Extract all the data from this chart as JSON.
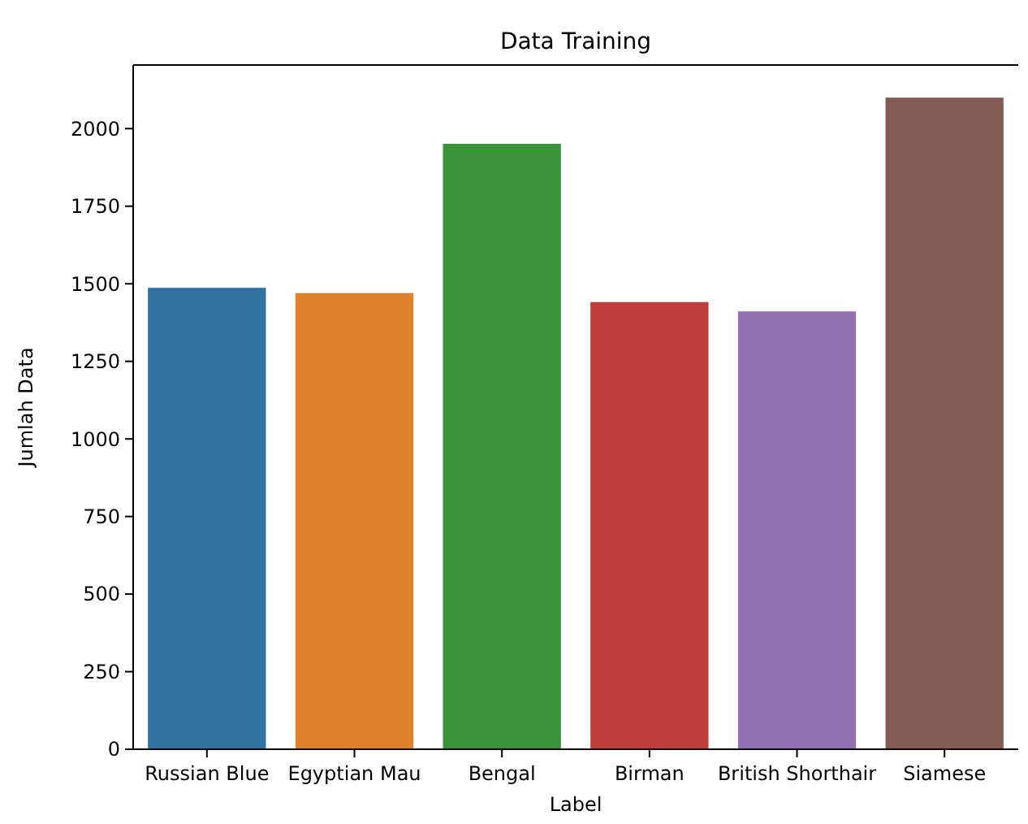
{
  "chart_data": {
    "type": "bar",
    "title": "Data Training",
    "xlabel": "Label",
    "ylabel": "Jumlah Data",
    "categories": [
      "Russian Blue",
      "Egyptian Mau",
      "Bengal",
      "Birman",
      "British Shorthair",
      "Siamese"
    ],
    "values": [
      1487,
      1470,
      1951,
      1441,
      1411,
      2100
    ],
    "colors": [
      "#3274a1",
      "#e1812c",
      "#3a923a",
      "#c03d3e",
      "#9372b2",
      "#845b53"
    ],
    "ylim": [
      0,
      2205
    ],
    "yticks": [
      0,
      250,
      500,
      750,
      1000,
      1250,
      1500,
      1750,
      2000
    ],
    "grid": false
  }
}
